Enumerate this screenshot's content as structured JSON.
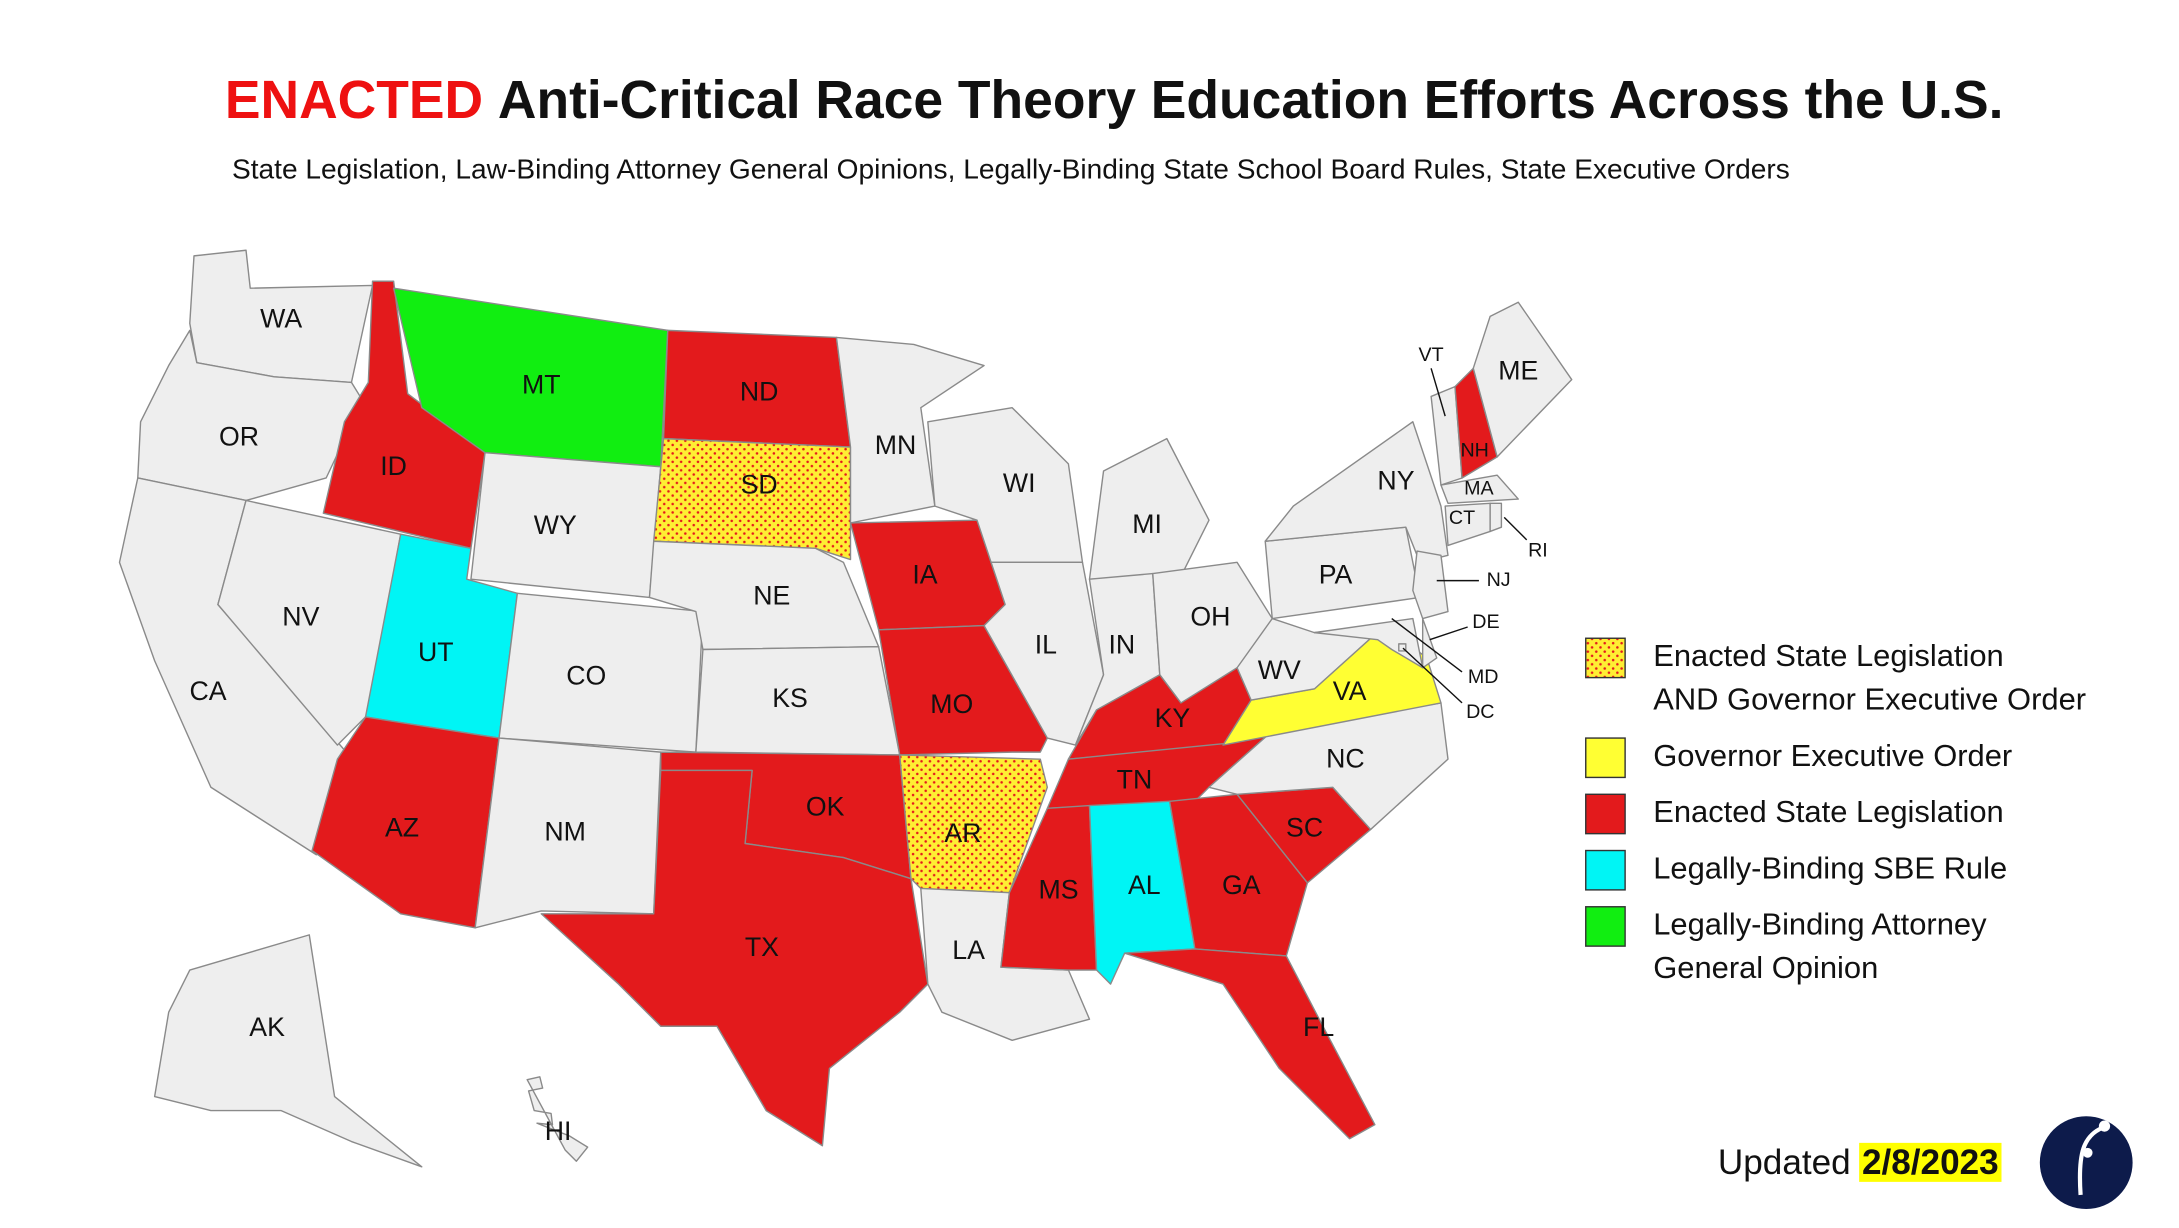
{
  "header": {
    "title_highlight": "ENACTED",
    "title_rest": "Anti-Critical Race Theory Education Efforts Across the U.S.",
    "subtitle": "State Legislation, Law-Binding Attorney General Opinions, Legally-Binding State School Board Rules, State Executive Orders"
  },
  "states": [
    {
      "abbr": "WA",
      "color": "#eeeeee"
    },
    {
      "abbr": "OR",
      "color": "#eeeeee"
    },
    {
      "abbr": "CA",
      "color": "#eeeeee"
    },
    {
      "abbr": "NV",
      "color": "#eeeeee"
    },
    {
      "abbr": "ID",
      "color": "#e31a1c"
    },
    {
      "abbr": "MT",
      "color": "#11ee11"
    },
    {
      "abbr": "WY",
      "color": "#eeeeee"
    },
    {
      "abbr": "UT",
      "color": "#00f5f5"
    },
    {
      "abbr": "CO",
      "color": "#eeeeee"
    },
    {
      "abbr": "AZ",
      "color": "#e31a1c"
    },
    {
      "abbr": "NM",
      "color": "#eeeeee"
    },
    {
      "abbr": "ND",
      "color": "#e31a1c"
    },
    {
      "abbr": "SD",
      "color": "#ffee33",
      "pattern": true
    },
    {
      "abbr": "NE",
      "color": "#eeeeee"
    },
    {
      "abbr": "KS",
      "color": "#eeeeee"
    },
    {
      "abbr": "OK",
      "color": "#e31a1c"
    },
    {
      "abbr": "TX",
      "color": "#e31a1c"
    },
    {
      "abbr": "MN",
      "color": "#eeeeee"
    },
    {
      "abbr": "IA",
      "color": "#e31a1c"
    },
    {
      "abbr": "MO",
      "color": "#e31a1c"
    },
    {
      "abbr": "AR",
      "color": "#ffee33",
      "pattern": true
    },
    {
      "abbr": "LA",
      "color": "#eeeeee"
    },
    {
      "abbr": "WI",
      "color": "#eeeeee"
    },
    {
      "abbr": "IL",
      "color": "#eeeeee"
    },
    {
      "abbr": "MI",
      "color": "#eeeeee"
    },
    {
      "abbr": "IN",
      "color": "#eeeeee"
    },
    {
      "abbr": "OH",
      "color": "#eeeeee"
    },
    {
      "abbr": "KY",
      "color": "#e31a1c"
    },
    {
      "abbr": "TN",
      "color": "#e31a1c"
    },
    {
      "abbr": "MS",
      "color": "#e31a1c"
    },
    {
      "abbr": "AL",
      "color": "#00f5f5"
    },
    {
      "abbr": "GA",
      "color": "#e31a1c"
    },
    {
      "abbr": "FL",
      "color": "#e31a1c"
    },
    {
      "abbr": "SC",
      "color": "#e31a1c"
    },
    {
      "abbr": "NC",
      "color": "#eeeeee"
    },
    {
      "abbr": "VA",
      "color": "#ffff33"
    },
    {
      "abbr": "WV",
      "color": "#eeeeee"
    },
    {
      "abbr": "PA",
      "color": "#eeeeee"
    },
    {
      "abbr": "NY",
      "color": "#eeeeee"
    },
    {
      "abbr": "VT",
      "color": "#eeeeee"
    },
    {
      "abbr": "NH",
      "color": "#e31a1c"
    },
    {
      "abbr": "ME",
      "color": "#eeeeee"
    },
    {
      "abbr": "MA",
      "color": "#eeeeee"
    },
    {
      "abbr": "CT",
      "color": "#eeeeee"
    },
    {
      "abbr": "RI",
      "color": "#eeeeee"
    },
    {
      "abbr": "NJ",
      "color": "#eeeeee"
    },
    {
      "abbr": "DE",
      "color": "#eeeeee"
    },
    {
      "abbr": "MD",
      "color": "#eeeeee"
    },
    {
      "abbr": "DC",
      "color": "#eeeeee"
    },
    {
      "abbr": "AK",
      "color": "#eeeeee"
    },
    {
      "abbr": "HI",
      "color": "#eeeeee"
    }
  ],
  "legend": [
    {
      "lines": [
        "Enacted State Legislation",
        "AND Governor Executive Order"
      ],
      "color": "#ffee33",
      "pattern": true
    },
    {
      "lines": [
        "Governor Executive Order"
      ],
      "color": "#ffff33"
    },
    {
      "lines": [
        "Enacted State Legislation"
      ],
      "color": "#e31a1c"
    },
    {
      "lines": [
        "Legally-Binding SBE Rule"
      ],
      "color": "#00f5f5"
    },
    {
      "lines": [
        "Legally-Binding Attorney",
        "General Opinion"
      ],
      "color": "#11ee11"
    }
  ],
  "footer": {
    "updated": "Updated",
    "date": "2/8/2023"
  }
}
